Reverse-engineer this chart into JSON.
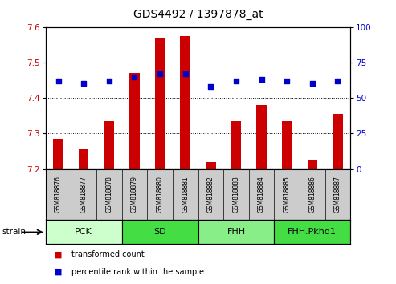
{
  "title": "GDS4492 / 1397878_at",
  "samples": [
    "GSM818876",
    "GSM818877",
    "GSM818878",
    "GSM818879",
    "GSM818880",
    "GSM818881",
    "GSM818882",
    "GSM818883",
    "GSM818884",
    "GSM818885",
    "GSM818886",
    "GSM818887"
  ],
  "bar_values": [
    7.285,
    7.255,
    7.335,
    7.47,
    7.57,
    7.575,
    7.22,
    7.335,
    7.38,
    7.335,
    7.225,
    7.355
  ],
  "percentile_values": [
    62,
    60,
    62,
    65,
    67,
    67,
    58,
    62,
    63,
    62,
    60,
    62
  ],
  "ylim_left": [
    7.2,
    7.6
  ],
  "ylim_right": [
    0,
    100
  ],
  "yticks_left": [
    7.2,
    7.3,
    7.4,
    7.5,
    7.6
  ],
  "yticks_right": [
    0,
    25,
    50,
    75,
    100
  ],
  "bar_color": "#cc0000",
  "dot_color": "#0000cc",
  "bar_bottom": 7.2,
  "groups": [
    {
      "label": "PCK",
      "start": 0,
      "end": 3,
      "color": "#ccffcc"
    },
    {
      "label": "SD",
      "start": 3,
      "end": 6,
      "color": "#44dd44"
    },
    {
      "label": "FHH",
      "start": 6,
      "end": 9,
      "color": "#88ee88"
    },
    {
      "label": "FHH.Pkhd1",
      "start": 9,
      "end": 12,
      "color": "#44dd44"
    }
  ],
  "legend_items": [
    {
      "label": "transformed count",
      "color": "#cc0000"
    },
    {
      "label": "percentile rank within the sample",
      "color": "#0000cc"
    }
  ],
  "strain_label": "strain",
  "tick_label_color_left": "#cc0000",
  "tick_label_color_right": "#0000cc",
  "background_color": "#ffffff",
  "sample_bg_color": "#cccccc",
  "bar_width": 0.4
}
